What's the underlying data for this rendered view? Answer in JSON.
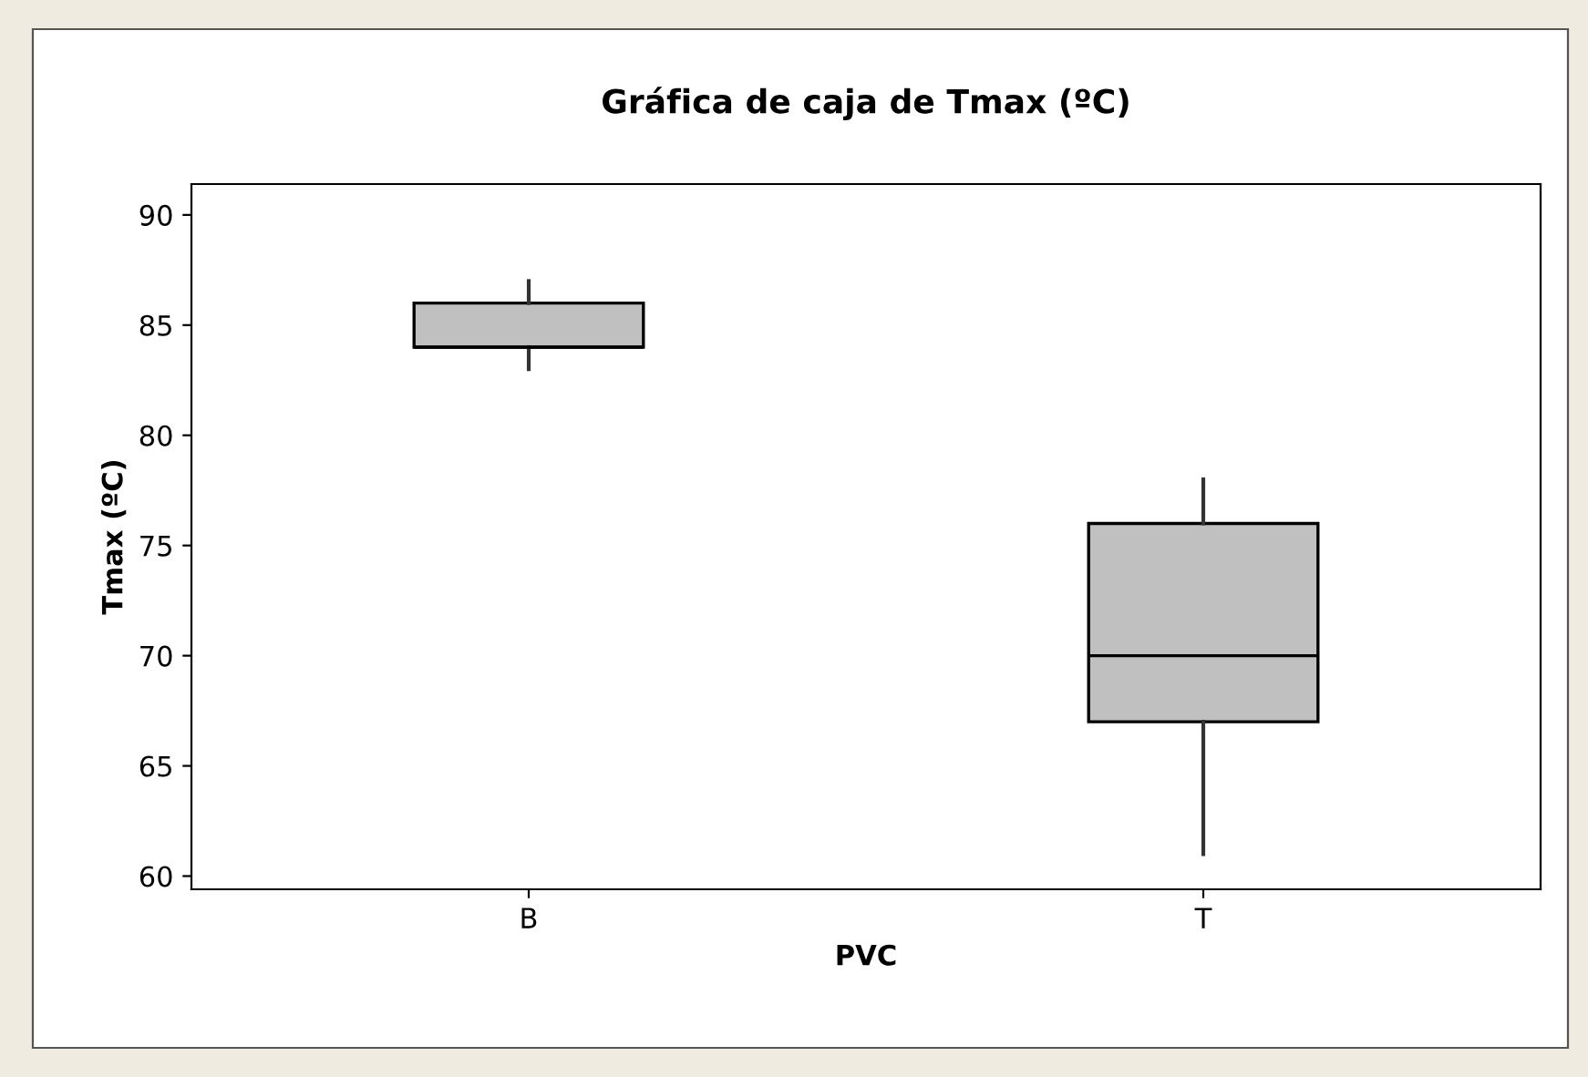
{
  "chart_data": {
    "type": "box",
    "title": "Gráfica de caja de Tmax (ºC)",
    "xlabel": "PVC",
    "ylabel": "Tmax (ºC)",
    "categories": [
      "B",
      "T"
    ],
    "boxes": [
      {
        "low": 83,
        "q1": 84,
        "median": 84,
        "q3": 86,
        "high": 87
      },
      {
        "low": 61,
        "q1": 67,
        "median": 70,
        "q3": 76,
        "high": 78
      }
    ],
    "color": "#c0c0c0",
    "ylim": [
      59.4,
      91.4
    ],
    "yticks": [
      60,
      65,
      70,
      75,
      80,
      85,
      90
    ],
    "grid": false,
    "legend": false
  }
}
